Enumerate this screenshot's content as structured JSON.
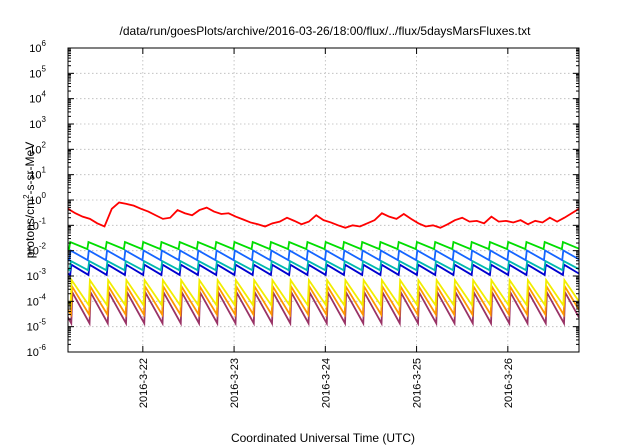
{
  "chart_data": {
    "type": "line",
    "title": "/data/run/goesPlots/archive/2016-03-26/18:00/flux/../flux/5daysMarsFluxes.txt",
    "xlabel": "Coordinated Universal Time (UTC)",
    "ylabel_parts": {
      "prefix": "protons/cm",
      "sup": "2",
      "suffix": "-s-sr-MeV"
    },
    "y_scale": "log",
    "ylim": [
      1e-06,
      1000000.0
    ],
    "xlim_days": [
      21.18,
      26.78
    ],
    "grid": true,
    "legend": "none",
    "x_ticks": [
      {
        "label": "2016-3-22",
        "day": 22
      },
      {
        "label": "2016-3-23",
        "day": 23
      },
      {
        "label": "2016-3-24",
        "day": 24
      },
      {
        "label": "2016-3-25",
        "day": 25
      },
      {
        "label": "2016-3-26",
        "day": 26
      }
    ],
    "y_ticks": [
      {
        "base": "10",
        "exp": "-6",
        "value": 1e-06
      },
      {
        "base": "10",
        "exp": "-5",
        "value": 1e-05
      },
      {
        "base": "10",
        "exp": "-4",
        "value": 0.0001
      },
      {
        "base": "10",
        "exp": "-3",
        "value": 0.001
      },
      {
        "base": "10",
        "exp": "-2",
        "value": 0.01
      },
      {
        "base": "10",
        "exp": "-1",
        "value": 0.1
      },
      {
        "base": "10",
        "exp": "0",
        "value": 1
      },
      {
        "base": "10",
        "exp": "1",
        "value": 10
      },
      {
        "base": "10",
        "exp": "2",
        "value": 100
      },
      {
        "base": "10",
        "exp": "3",
        "value": 1000
      },
      {
        "base": "10",
        "exp": "4",
        "value": 10000
      },
      {
        "base": "10",
        "exp": "5",
        "value": 100000
      },
      {
        "base": "10",
        "exp": "6",
        "value": 1000000
      }
    ],
    "series": [
      {
        "color": "#ff0000",
        "x": [
          21.18,
          21.26,
          21.34,
          21.42,
          21.5,
          21.58,
          21.66,
          21.74,
          21.82,
          21.9,
          21.98,
          22.06,
          22.14,
          22.22,
          22.3,
          22.38,
          22.46,
          22.54,
          22.62,
          22.7,
          22.78,
          22.86,
          22.94,
          23.02,
          23.1,
          23.18,
          23.26,
          23.34,
          23.42,
          23.5,
          23.58,
          23.66,
          23.74,
          23.82,
          23.9,
          23.98,
          24.06,
          24.14,
          24.22,
          24.3,
          24.38,
          24.46,
          24.54,
          24.62,
          24.7,
          24.78,
          24.86,
          24.94,
          25.02,
          25.1,
          25.18,
          25.26,
          25.34,
          25.42,
          25.5,
          25.58,
          25.66,
          25.74,
          25.82,
          25.9,
          25.98,
          26.06,
          26.14,
          26.22,
          26.3,
          26.38,
          26.46,
          26.54,
          26.62,
          26.7,
          26.78
        ],
        "values": [
          0.45,
          0.3,
          0.22,
          0.18,
          0.12,
          0.09,
          0.45,
          0.8,
          0.7,
          0.6,
          0.45,
          0.35,
          0.25,
          0.18,
          0.2,
          0.4,
          0.3,
          0.25,
          0.4,
          0.5,
          0.35,
          0.28,
          0.3,
          0.22,
          0.17,
          0.13,
          0.11,
          0.09,
          0.12,
          0.14,
          0.2,
          0.15,
          0.11,
          0.14,
          0.25,
          0.16,
          0.13,
          0.1,
          0.08,
          0.1,
          0.09,
          0.12,
          0.16,
          0.3,
          0.22,
          0.18,
          0.28,
          0.18,
          0.12,
          0.09,
          0.1,
          0.08,
          0.11,
          0.16,
          0.2,
          0.14,
          0.15,
          0.12,
          0.22,
          0.14,
          0.15,
          0.13,
          0.16,
          0.11,
          0.15,
          0.13,
          0.2,
          0.14,
          0.2,
          0.3,
          0.45
        ]
      },
      {
        "color": "#00dd00",
        "base": 0.0115,
        "amp": 0.0105
      },
      {
        "color": "#1565ff",
        "base": 0.0042,
        "amp": 0.006
      },
      {
        "color": "#00b8b0",
        "base": 0.0017,
        "amp": 0.0022
      },
      {
        "color": "#0000d0",
        "base": 0.0011,
        "amp": 0.0017
      },
      {
        "color": "#f2ee00",
        "base": 7e-05,
        "amp": 0.00062
      },
      {
        "color": "#ff9900",
        "base": 3e-05,
        "amp": 0.00036
      },
      {
        "color": "#993366",
        "base": 1.35e-05,
        "amp": 0.00021
      }
    ]
  }
}
